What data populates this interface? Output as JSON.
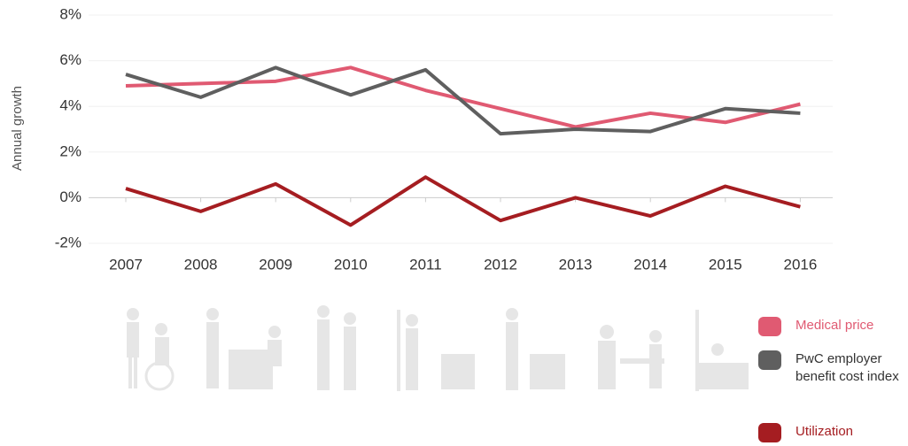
{
  "chart_data": {
    "type": "line",
    "y_label": "Annual growth",
    "categories": [
      "2007",
      "2008",
      "2009",
      "2010",
      "2011",
      "2012",
      "2013",
      "2014",
      "2015",
      "2016"
    ],
    "ylim": [
      -2,
      8
    ],
    "yticks": [
      {
        "value": -2,
        "label": "-2%"
      },
      {
        "value": 0,
        "label": "0%"
      },
      {
        "value": 2,
        "label": "2%"
      },
      {
        "value": 4,
        "label": "4%"
      },
      {
        "value": 6,
        "label": "6%"
      },
      {
        "value": 8,
        "label": "8%"
      }
    ],
    "grid": true,
    "series": [
      {
        "name": "Medical price",
        "color": "#e05a72",
        "values": [
          4.9,
          5.0,
          5.1,
          5.7,
          4.7,
          3.9,
          3.1,
          3.7,
          3.3,
          4.1
        ]
      },
      {
        "name": "PwC employer benefit cost index",
        "color": "#5f5f5f",
        "values": [
          5.4,
          4.4,
          5.7,
          4.5,
          5.6,
          2.8,
          3.0,
          2.9,
          3.9,
          3.7
        ]
      },
      {
        "name": "Utilization",
        "color": "#a51d21",
        "values": [
          0.4,
          -0.6,
          0.6,
          -1.2,
          0.9,
          -1.0,
          0.0,
          -0.8,
          0.5,
          -0.4
        ]
      }
    ]
  }
}
